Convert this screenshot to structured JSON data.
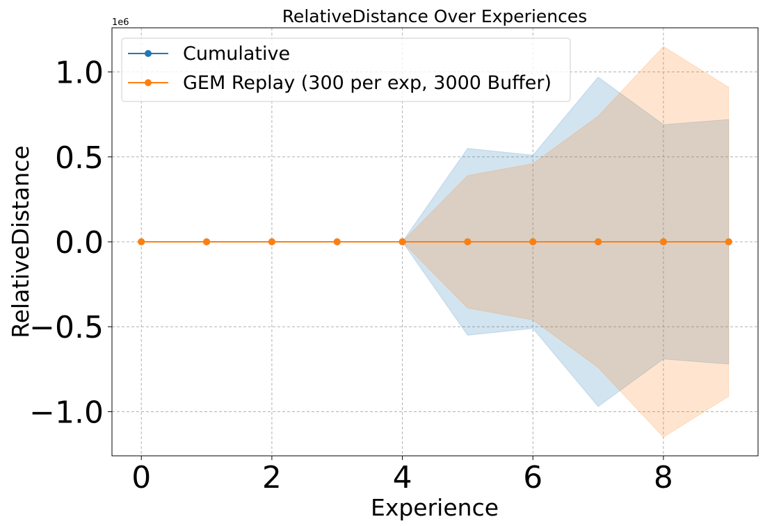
{
  "chart_data": {
    "type": "line",
    "title": "RelativeDistance Over Experiences",
    "xlabel": "Experience",
    "ylabel": "RelativeDistance",
    "y_offset_label": "1e6",
    "xlim": [
      -0.45,
      9.45
    ],
    "ylim": [
      -1.26,
      1.26
    ],
    "x_ticks": [
      0,
      2,
      4,
      6,
      8
    ],
    "x_tick_labels": [
      "0",
      "2",
      "4",
      "6",
      "8"
    ],
    "y_ticks": [
      -1.0,
      -0.5,
      0.0,
      0.5,
      1.0
    ],
    "y_tick_labels": [
      "−1.0",
      "−0.5",
      "0.0",
      "0.5",
      "1.0"
    ],
    "grid": true,
    "legend_position": "top-left",
    "x": [
      0,
      1,
      2,
      3,
      4,
      5,
      6,
      7,
      8,
      9
    ],
    "series": [
      {
        "name": "Cumulative",
        "color": "#1f77b4",
        "values": [
          0,
          0,
          0,
          0,
          0,
          0,
          0,
          0,
          0,
          0
        ],
        "band": [
          0,
          0,
          0,
          0,
          0,
          0.55,
          0.51,
          0.97,
          0.69,
          0.72
        ]
      },
      {
        "name": "GEM Replay (300 per exp, 3000 Buffer)",
        "color": "#ff7f0e",
        "values": [
          0,
          0,
          0,
          0,
          0,
          0,
          0,
          0,
          0,
          0
        ],
        "band": [
          0,
          0,
          0,
          0,
          0,
          0.39,
          0.46,
          0.74,
          1.15,
          0.91
        ]
      }
    ]
  }
}
